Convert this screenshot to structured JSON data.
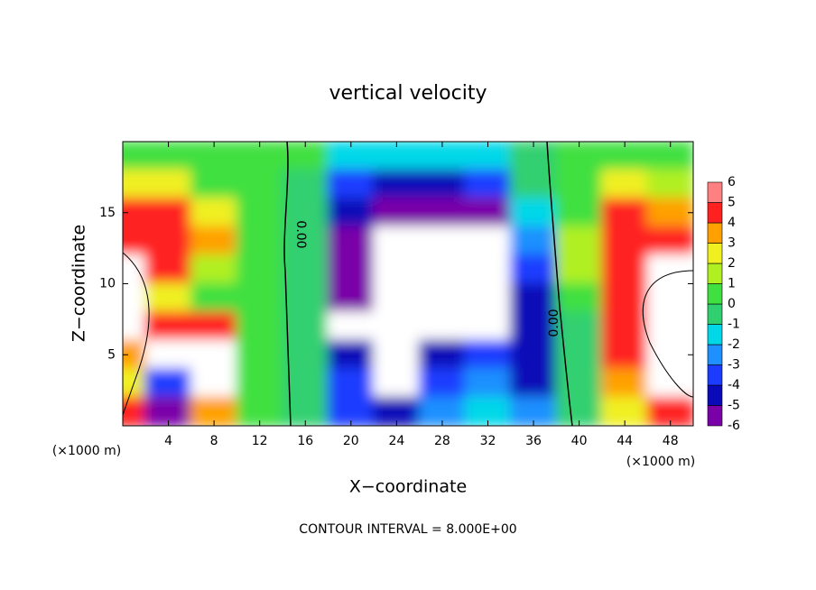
{
  "chart_data": {
    "type": "contour",
    "title": "vertical velocity",
    "xlabel": "X−coordinate",
    "ylabel": "Z−coordinate",
    "xunit": "(×1000 m)",
    "xunit2": "(×1000 m)",
    "footer": "CONTOUR INTERVAL = 8.000E+00",
    "contour_labels": [
      "0.00",
      "0.00"
    ],
    "xlim": [
      0,
      50
    ],
    "ylim": [
      0,
      20
    ],
    "xticks": [
      4,
      8,
      12,
      16,
      20,
      24,
      28,
      32,
      36,
      40,
      44,
      48
    ],
    "yticks": [
      5,
      10,
      15
    ],
    "x": [
      0,
      4,
      8,
      12,
      16,
      20,
      24,
      28,
      32,
      36,
      40,
      44,
      48
    ],
    "y": [
      19,
      17,
      15,
      13,
      11,
      9,
      7,
      5,
      3,
      1
    ],
    "z": [
      [
        0.5,
        0.5,
        1,
        1,
        0.5,
        -1,
        -1.5,
        -1.5,
        -1,
        0,
        0.5,
        0.5,
        0.5
      ],
      [
        3,
        3,
        1,
        0.5,
        0,
        -3,
        -4,
        -4,
        -3,
        0,
        1,
        3,
        2
      ],
      [
        5,
        5,
        3,
        1,
        0,
        -4,
        -5,
        -5,
        -5,
        -1,
        1,
        5,
        4
      ],
      [
        5,
        5,
        4,
        1,
        0,
        -5,
        -8,
        -8,
        -8,
        -2,
        2,
        5,
        5
      ],
      [
        8,
        5,
        2,
        1,
        0,
        -5,
        -8,
        -8,
        -8,
        -3,
        2,
        5,
        8
      ],
      [
        8,
        3,
        1,
        1,
        0,
        -5,
        -8,
        -8,
        -8,
        -4,
        1,
        5,
        8
      ],
      [
        8,
        5,
        5,
        1,
        0,
        -8,
        -8,
        -8,
        -8,
        -4,
        0,
        5,
        8
      ],
      [
        4,
        8,
        8,
        1,
        0,
        -4,
        -8,
        -4,
        -3,
        -4,
        0,
        5,
        8
      ],
      [
        3,
        -3,
        8,
        1,
        0,
        -3,
        -8,
        -3,
        -2,
        -4,
        0,
        4,
        8
      ],
      [
        5,
        -5,
        4,
        1,
        0,
        -3,
        -4,
        -2,
        -1,
        -2,
        0,
        3,
        5
      ]
    ],
    "levels": [
      -6,
      -5,
      -4,
      -3,
      -2,
      -1,
      0,
      1,
      2,
      3,
      4,
      5,
      6
    ],
    "colors": [
      "#7a00a8",
      "#0a0ab8",
      "#1b3cff",
      "#1e90ff",
      "#00d8e8",
      "#30d070",
      "#40e040",
      "#b0f020",
      "#f0f020",
      "#ffa000",
      "#ff2020",
      "#ff8080"
    ],
    "out_of_range_color": "#ffffff"
  }
}
